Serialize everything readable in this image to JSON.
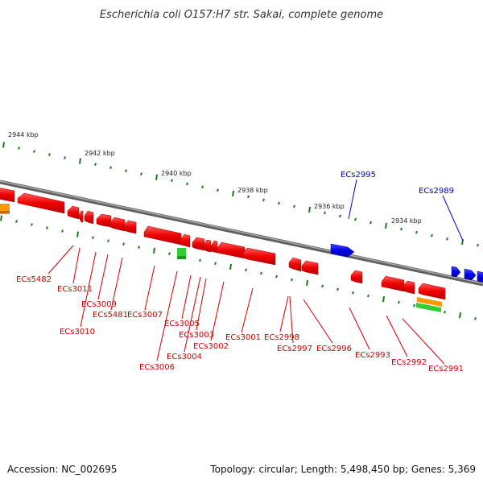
{
  "title": "Escherichia coli O157:H7 str. Sakai, complete genome",
  "footer": {
    "accession": "Accession: NC_002695",
    "summary": "Topology: circular; Length: 5,498,450 bp; Genes: 5,369"
  },
  "colors": {
    "backbone": "#808080",
    "forward_gene": "#0000ff",
    "reverse_gene": "#ff0000",
    "tick": "#1a7a1a",
    "label_blue": "#0000cc",
    "label_red": "#cc0000"
  },
  "scale_labels": [
    "2944 kbp",
    "2942 kbp",
    "2940 kbp",
    "2938 kbp",
    "2936 kbp",
    "2934 kbp"
  ],
  "gene_labels_top": [
    "ECs2995",
    "ECs2989"
  ],
  "gene_labels_bottom": [
    "ECs5482",
    "ECs3011",
    "ECs3010",
    "ECs3009",
    "ECs5481",
    "ECs3007",
    "ECs3006",
    "ECs3005",
    "ECs3004",
    "ECs3003",
    "ECs3002",
    "ECs3001",
    "ECs2998",
    "ECs2997",
    "ECs2996",
    "ECs2993",
    "ECs2992",
    "ECs2991"
  ]
}
